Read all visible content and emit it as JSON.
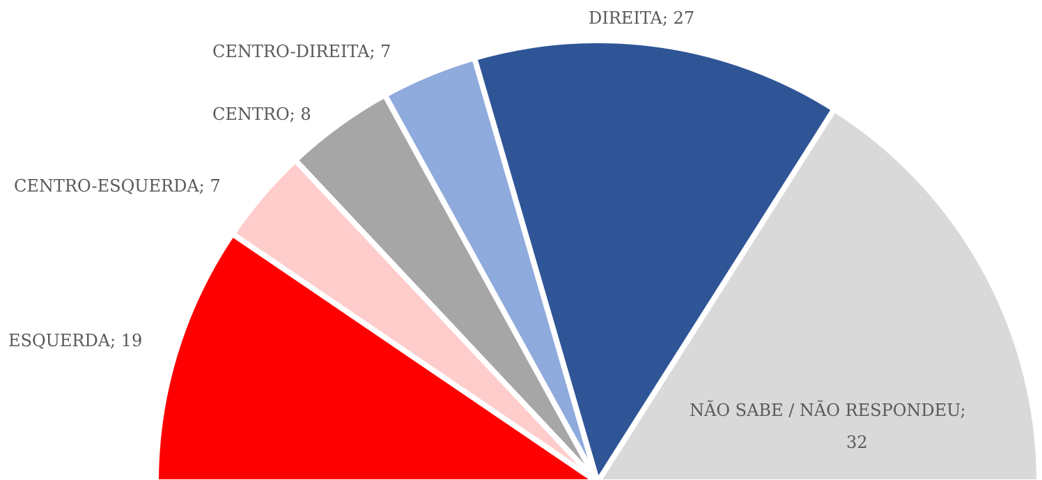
{
  "chart_data": {
    "type": "half-pie",
    "categories": [
      "ESQUERDA",
      "CENTRO-ESQUERDA",
      "CENTRO",
      "CENTRO-DIREITA",
      "DIREITA",
      "NÃO SABE / NÃO RESPONDEU"
    ],
    "values": [
      19,
      7,
      8,
      7,
      27,
      32
    ],
    "colors": [
      "#ff0000",
      "#ffcccc",
      "#a6a6a6",
      "#8faadc",
      "#2f5597",
      "#d9d9d9"
    ],
    "label_separator": "; "
  }
}
